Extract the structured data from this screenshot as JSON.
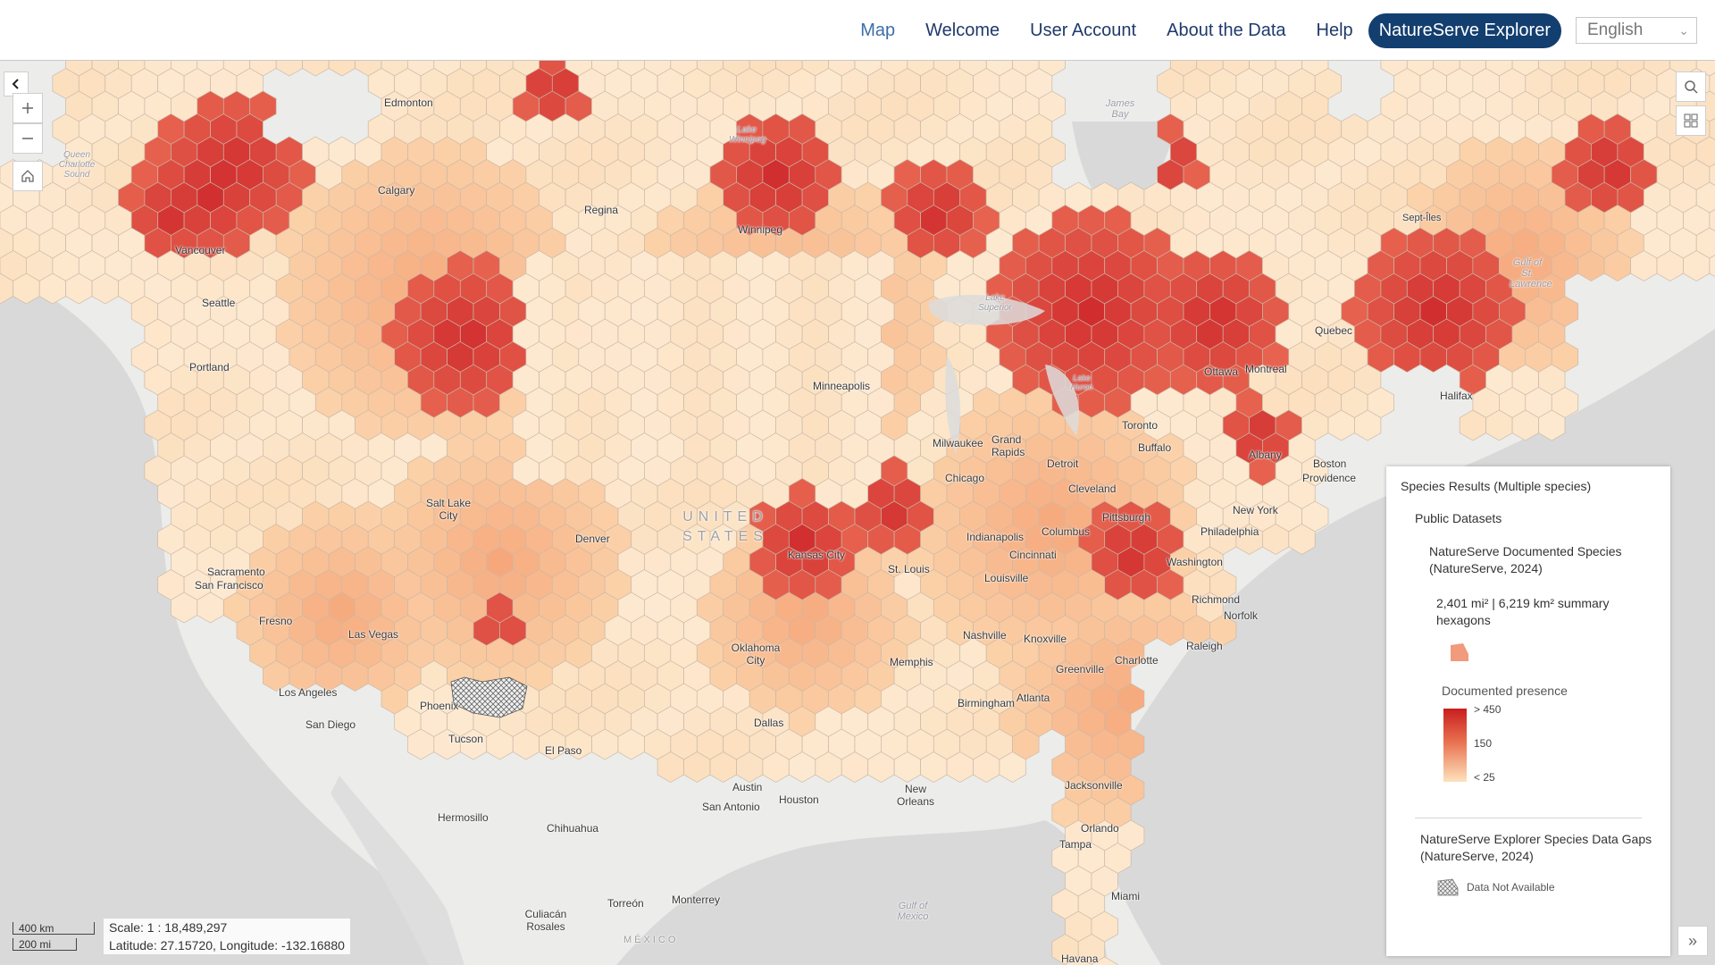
{
  "nav": {
    "items": [
      "Map",
      "Welcome",
      "User Account",
      "About the Data",
      "Help"
    ],
    "primary": "NatureServe Explorer",
    "language": "English"
  },
  "map": {
    "places": [
      {
        "name": "Edmonton"
      },
      {
        "name": "Calgary"
      },
      {
        "name": "Vancouver"
      },
      {
        "name": "Seattle"
      },
      {
        "name": "Portland"
      },
      {
        "name": "Regina"
      },
      {
        "name": "Winnipeg"
      },
      {
        "name": "Sacramento"
      },
      {
        "name": "San Francisco"
      },
      {
        "name": "Fresno"
      },
      {
        "name": "Las Vegas"
      },
      {
        "name": "Los Angeles"
      },
      {
        "name": "San Diego"
      },
      {
        "name": "Phoenix"
      },
      {
        "name": "Tucson"
      },
      {
        "name": "El Paso"
      },
      {
        "name": "Salt Lake City"
      },
      {
        "name": "Denver"
      },
      {
        "name": "Minneapolis"
      },
      {
        "name": "Milwaukee"
      },
      {
        "name": "Chicago"
      },
      {
        "name": "Grand Rapids"
      },
      {
        "name": "Detroit"
      },
      {
        "name": "Cleveland"
      },
      {
        "name": "Toronto"
      },
      {
        "name": "Buffalo"
      },
      {
        "name": "Ottawa"
      },
      {
        "name": "Montreal"
      },
      {
        "name": "Quebec"
      },
      {
        "name": "Albany"
      },
      {
        "name": "Boston"
      },
      {
        "name": "Providence"
      },
      {
        "name": "New York"
      },
      {
        "name": "Philadelphia"
      },
      {
        "name": "Washington"
      },
      {
        "name": "Pittsburgh"
      },
      {
        "name": "Columbus"
      },
      {
        "name": "Indianapolis"
      },
      {
        "name": "Cincinnati"
      },
      {
        "name": "Louisville"
      },
      {
        "name": "Kansas City"
      },
      {
        "name": "St. Louis"
      },
      {
        "name": "Oklahoma City"
      },
      {
        "name": "Nashville"
      },
      {
        "name": "Knoxville"
      },
      {
        "name": "Memphis"
      },
      {
        "name": "Charlotte"
      },
      {
        "name": "Greenville"
      },
      {
        "name": "Raleigh"
      },
      {
        "name": "Richmond"
      },
      {
        "name": "Norfolk"
      },
      {
        "name": "Atlanta"
      },
      {
        "name": "Birmingham"
      },
      {
        "name": "Dallas"
      },
      {
        "name": "Austin"
      },
      {
        "name": "San Antonio"
      },
      {
        "name": "Houston"
      },
      {
        "name": "New Orleans"
      },
      {
        "name": "Jacksonville"
      },
      {
        "name": "Orlando"
      },
      {
        "name": "Tampa"
      },
      {
        "name": "Miami"
      },
      {
        "name": "Havana"
      },
      {
        "name": "Hermosillo"
      },
      {
        "name": "Chihuahua"
      },
      {
        "name": "Culiacán Rosales"
      },
      {
        "name": "Torreón"
      },
      {
        "name": "Monterrey"
      },
      {
        "name": "Halifax"
      },
      {
        "name": "Sept-Îles"
      }
    ],
    "water_labels": [
      "Gulf of Mexico",
      "Lake Superior",
      "Lake Winnipeg",
      "James Bay",
      "Gulf of St. Lawrence",
      "Queen Charlotte Sound",
      "Lake Huron"
    ],
    "country_labels": [
      "UNITED STATES",
      "MÉXICO"
    ]
  },
  "legend": {
    "title": "Species Results (Multiple species)",
    "group": "Public Datasets",
    "layer": "NatureServe Documented Species (NatureServe, 2024)",
    "hex_label": "2,401 mi² | 6,219 km² summary hexagons",
    "presence_label": "Documented presence",
    "ramp_labels": [
      "> 450",
      "150",
      "< 25"
    ],
    "gaps_layer": "NatureServe Explorer Species Data Gaps (NatureServe, 2024)",
    "na_label": "Data Not Available"
  },
  "scale": {
    "km": "400 km",
    "mi": "200 mi",
    "scale_text": "Scale: 1 : 18,489,297",
    "coords_text": "Latitude: 27.15720, Longitude: -132.16880"
  },
  "colors": {
    "nav_text": "#1f3a6b",
    "nav_active": "#3c6ea8",
    "primary_button": "#133e70",
    "ramp_high": "#c81e1e",
    "ramp_mid": "#e8704f",
    "ramp_low": "#fde3bd"
  },
  "icons": {
    "collapse": "chevron-left-icon",
    "zoom_in": "plus-icon",
    "zoom_out": "minus-icon",
    "home": "home-icon",
    "search": "search-icon",
    "basemap": "grid-icon",
    "expand": "double-chevron-right-icon"
  }
}
